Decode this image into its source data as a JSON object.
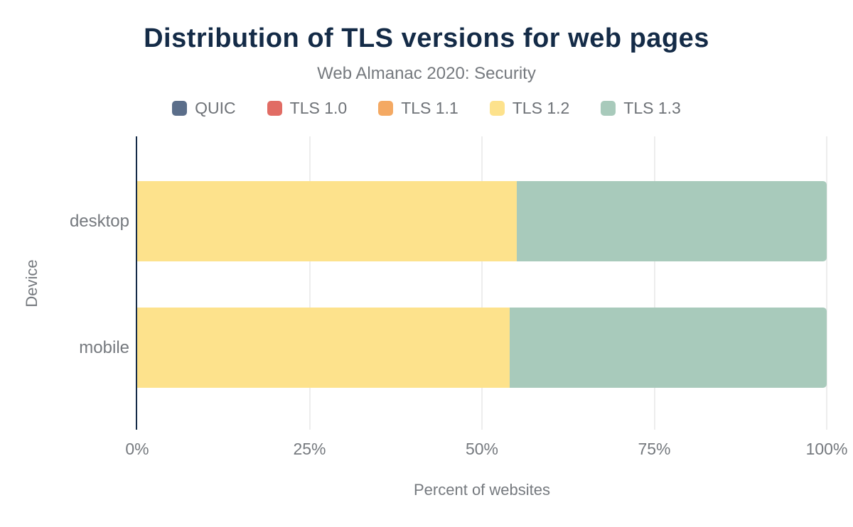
{
  "header": {
    "title": "Distribution of TLS versions for web pages",
    "subtitle": "Web Almanac 2020: Security"
  },
  "colors": {
    "title_text": "#142b47",
    "axis_line": "#152b47",
    "muted_text": "#75797e",
    "gridline": "#ededed",
    "background": "#ffffff"
  },
  "chart_data": {
    "type": "bar",
    "orientation": "horizontal",
    "stacked": true,
    "title": "Distribution of TLS versions for web pages",
    "subtitle": "Web Almanac 2020: Security",
    "categories": [
      "desktop",
      "mobile"
    ],
    "series": [
      {
        "name": "QUIC",
        "color": "#5b6e8a",
        "values": [
          0,
          0
        ]
      },
      {
        "name": "TLS 1.0",
        "color": "#e16c64",
        "values": [
          0,
          0
        ]
      },
      {
        "name": "TLS 1.1",
        "color": "#f4a963",
        "values": [
          0,
          0
        ]
      },
      {
        "name": "TLS 1.2",
        "color": "#fde28c",
        "values": [
          55,
          54
        ]
      },
      {
        "name": "TLS 1.3",
        "color": "#a8cabb",
        "values": [
          45,
          46
        ]
      }
    ],
    "xlabel": "Percent of websites",
    "ylabel": "Device",
    "xlim": [
      0,
      100
    ],
    "xticks": [
      {
        "value": 0,
        "label": "0%"
      },
      {
        "value": 25,
        "label": "25%"
      },
      {
        "value": 50,
        "label": "50%"
      },
      {
        "value": 75,
        "label": "75%"
      },
      {
        "value": 100,
        "label": "100%"
      }
    ],
    "grid": true,
    "legend_position": "top"
  }
}
